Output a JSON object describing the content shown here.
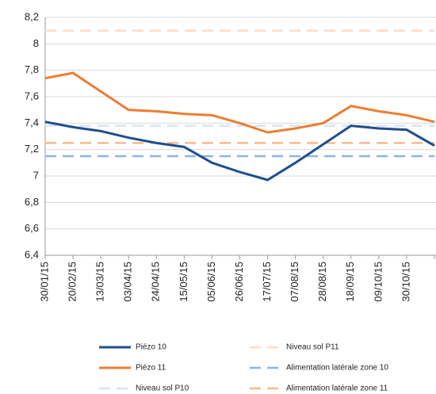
{
  "chart_data": {
    "type": "line",
    "categories": [
      "30/01/15",
      "20/02/15",
      "13/03/15",
      "03/04/15",
      "24/04/15",
      "15/05/15",
      "05/06/15",
      "26/06/15",
      "17/07/15",
      "07/08/15",
      "28/08/15",
      "18/09/15",
      "09/10/15",
      "30/10/15",
      null
    ],
    "series": [
      {
        "name": "Piézo 10",
        "color": "#1f4e8c",
        "values": [
          7.41,
          7.37,
          7.34,
          7.29,
          7.25,
          7.22,
          7.1,
          7.03,
          6.97,
          7.1,
          7.24,
          7.38,
          7.36,
          7.35,
          7.23
        ]
      },
      {
        "name": "Piézo 11",
        "color": "#ed7d31",
        "values": [
          7.74,
          7.78,
          7.64,
          7.5,
          7.49,
          7.47,
          7.46,
          7.4,
          7.33,
          7.36,
          7.4,
          7.53,
          7.49,
          7.46,
          7.41
        ]
      },
      {
        "name": "Niveau sol P10",
        "color": "#d9e4f3",
        "dashed": true,
        "values": [
          7.38,
          7.38,
          7.38,
          7.38,
          7.38,
          7.38,
          7.38,
          7.38,
          7.38,
          7.38,
          7.38,
          7.38,
          7.38,
          7.38,
          7.38
        ]
      },
      {
        "name": "Niveau sol P11",
        "color": "#fcdcc4",
        "dashed": true,
        "values": [
          8.1,
          8.1,
          8.1,
          8.1,
          8.1,
          8.1,
          8.1,
          8.1,
          8.1,
          8.1,
          8.1,
          8.1,
          8.1,
          8.1,
          8.1
        ]
      },
      {
        "name": "Alimentation latérale zone 10",
        "color": "#8db3e2",
        "dashed": true,
        "values": [
          7.15,
          7.15,
          7.15,
          7.15,
          7.15,
          7.15,
          7.15,
          7.15,
          7.15,
          7.15,
          7.15,
          7.15,
          7.15,
          7.15,
          7.15
        ]
      },
      {
        "name": "Alimentation latérale zone 11",
        "color": "#f9b98a",
        "dashed": true,
        "values": [
          7.25,
          7.25,
          7.25,
          7.25,
          7.25,
          7.25,
          7.25,
          7.25,
          7.25,
          7.25,
          7.25,
          7.25,
          7.25,
          7.25,
          7.25
        ]
      }
    ],
    "ylim": [
      6.4,
      8.2
    ],
    "yticks": [
      {
        "value": 6.4,
        "label": "6,4"
      },
      {
        "value": 6.6,
        "label": "6,6"
      },
      {
        "value": 6.8,
        "label": "6,8"
      },
      7,
      {
        "value": 7.2,
        "label": "7,2"
      },
      {
        "value": 7.4,
        "label": "7,4"
      },
      {
        "value": 7.6,
        "label": "7,6"
      },
      {
        "value": 7.8,
        "label": "7,8"
      },
      8,
      {
        "value": 8.2,
        "label": "8,2"
      }
    ],
    "grid": true
  }
}
